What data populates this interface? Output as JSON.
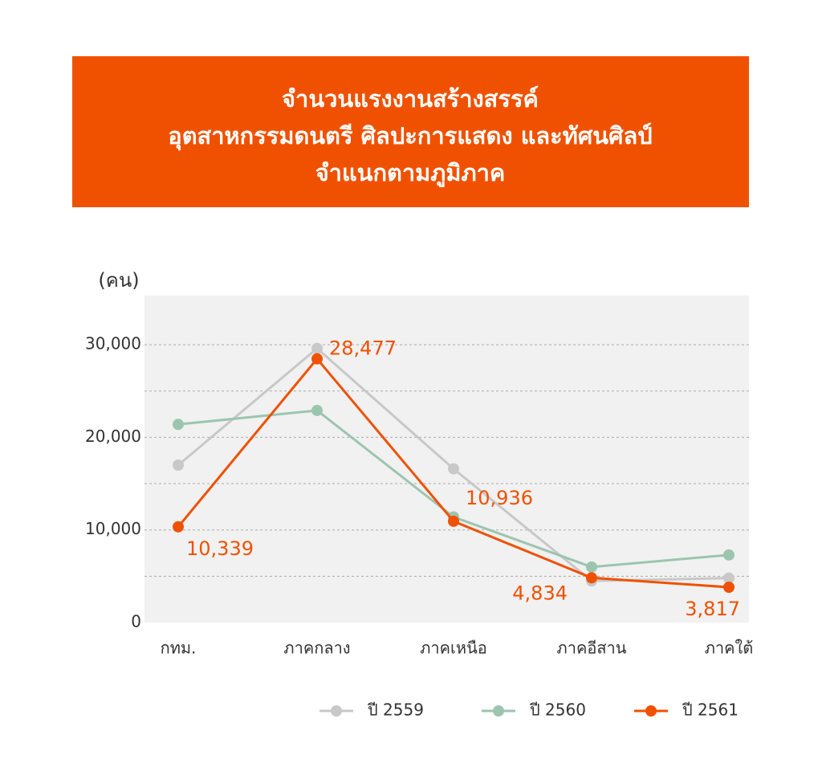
{
  "chart_data": {
    "type": "line",
    "title": [
      "จำนวนแรงงานสร้างสรรค์",
      "อุตสาหกรรมดนตรี ศิลปะการแสดง และทัศนศิลป์",
      "จำแนกตามภูมิภาค"
    ],
    "y_label": "(คน)",
    "categories": [
      "กทม.",
      "ภาคกลาง",
      "ภาคเหนือ",
      "ภาคอีสาน",
      "ภาคใต้"
    ],
    "series": [
      {
        "name": "ปี 2559",
        "color": "#c8c8c8",
        "values": [
          17000,
          29600,
          16600,
          4500,
          4800
        ]
      },
      {
        "name": "ปี 2560",
        "color": "#9cc5b0",
        "values": [
          21400,
          22900,
          11400,
          6000,
          7300
        ]
      },
      {
        "name": "ปี 2561",
        "color": "#f05100",
        "values": [
          10339,
          28477,
          10936,
          4834,
          3817
        ],
        "value_labels": [
          "10,339",
          "28,477",
          "10,936",
          "4,834",
          "3,817"
        ]
      }
    ],
    "ylim": [
      0,
      35300
    ],
    "yticks": [
      0,
      {
        "value": 10000,
        "label": "10,000"
      },
      {
        "value": 20000,
        "label": "20,000"
      },
      {
        "value": 30000,
        "label": "30,000"
      }
    ],
    "minor_yticks": [
      5000,
      15000,
      25000
    ],
    "grid": true,
    "legend": "bottom-right"
  }
}
